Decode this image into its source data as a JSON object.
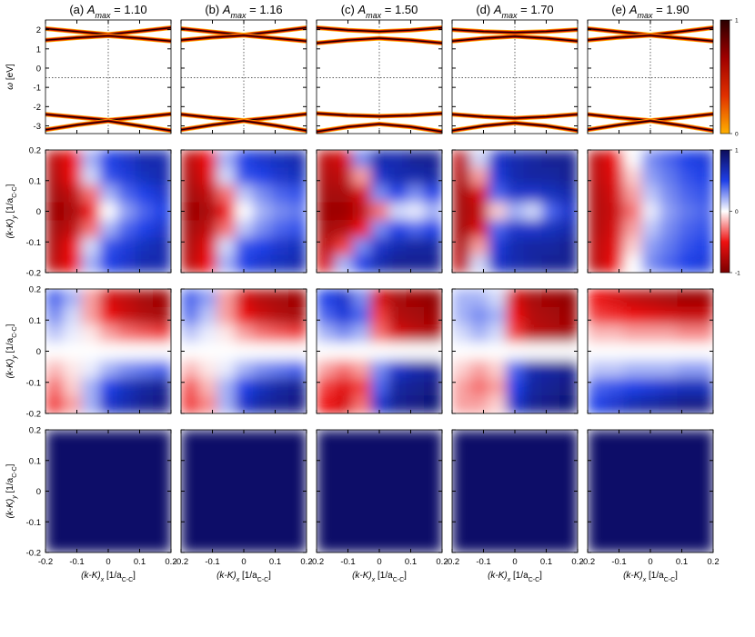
{
  "chart_data": [
    {
      "type": "line",
      "columns": [
        {
          "label": "(a)",
          "symbol": "A",
          "sub": "max",
          "eq": "= 1.10"
        },
        {
          "label": "(b)",
          "symbol": "A",
          "sub": "max",
          "eq": "= 1.16"
        },
        {
          "label": "(c)",
          "symbol": "A",
          "sub": "max",
          "eq": "= 1.50"
        },
        {
          "label": "(d)",
          "symbol": "A",
          "sub": "max",
          "eq": "= 1.70"
        },
        {
          "label": "(e)",
          "symbol": "A",
          "sub": "max",
          "eq": "= 1.90"
        }
      ],
      "ylabel": [
        "ω",
        " [eV]"
      ],
      "xlim": [
        -0.2,
        0.2
      ],
      "xticks": [
        -0.2,
        -0.1,
        0,
        0.1,
        0.2
      ],
      "ylim": [
        -3.4,
        2.5
      ],
      "yticks": [
        -3,
        -2,
        -1,
        0,
        1,
        2
      ],
      "hline": -0.5,
      "vline": 0,
      "x": [
        -0.2,
        -0.1,
        0,
        0.1,
        0.2
      ],
      "panels": [
        [
          [
            2.05,
            1.9,
            1.75,
            1.92,
            2.1
          ],
          [
            1.45,
            1.58,
            1.68,
            1.55,
            1.4
          ],
          [
            -2.4,
            -2.55,
            -2.7,
            -2.55,
            -2.38
          ],
          [
            -3.2,
            -2.95,
            -2.75,
            -3.0,
            -3.25
          ]
        ],
        [
          [
            2.05,
            1.88,
            1.72,
            1.9,
            2.1
          ],
          [
            1.45,
            1.6,
            1.7,
            1.55,
            1.4
          ],
          [
            -2.4,
            -2.58,
            -2.72,
            -2.56,
            -2.38
          ],
          [
            -3.2,
            -2.95,
            -2.74,
            -2.98,
            -3.25
          ]
        ],
        [
          [
            2.1,
            1.97,
            1.9,
            1.97,
            2.1
          ],
          [
            1.3,
            1.45,
            1.55,
            1.45,
            1.3
          ],
          [
            -2.35,
            -2.45,
            -2.5,
            -2.45,
            -2.35
          ],
          [
            -3.3,
            -3.05,
            -2.9,
            -3.05,
            -3.3
          ]
        ],
        [
          [
            2.0,
            1.9,
            1.85,
            1.9,
            2.0
          ],
          [
            1.4,
            1.55,
            1.65,
            1.55,
            1.4
          ],
          [
            -2.4,
            -2.52,
            -2.6,
            -2.52,
            -2.4
          ],
          [
            -3.25,
            -3.0,
            -2.85,
            -3.0,
            -3.25
          ]
        ],
        [
          [
            2.05,
            1.88,
            1.72,
            1.9,
            2.1
          ],
          [
            1.45,
            1.6,
            1.7,
            1.55,
            1.4
          ],
          [
            -2.4,
            -2.58,
            -2.72,
            -2.56,
            -2.38
          ],
          [
            -3.2,
            -2.95,
            -2.74,
            -2.98,
            -3.25
          ]
        ]
      ],
      "line_colors": [
        "#ffb000",
        "#d81800",
        "#1a0000"
      ],
      "colorbar": {
        "lim": [
          0,
          1
        ],
        "ticks": [
          0,
          1
        ],
        "colors": [
          "#ffb000",
          "#e03000",
          "#a00000",
          "#2a0000"
        ]
      }
    },
    {
      "type": "heatmap",
      "xlim": [
        -0.2,
        0.2
      ],
      "xticks": [
        -0.2,
        -0.1,
        0,
        0.1,
        0.2
      ],
      "ylim": [
        -0.2,
        0.2
      ],
      "yticks": [
        -0.2,
        -0.1,
        0,
        0.1,
        0.2
      ],
      "xlabel": [
        "(k-K)",
        "x",
        " [1/a",
        "C-C",
        "]"
      ],
      "ylabel": [
        "(k-K)",
        "y",
        " [1/a",
        "C-C",
        "]"
      ],
      "colorbar": {
        "lim": [
          -1,
          1
        ],
        "ticks": [
          -1,
          0,
          1
        ],
        "colors": [
          "#7a0000",
          "#ee1111",
          "#ffffff",
          "#1f3fe8",
          "#0c0c5a"
        ]
      },
      "rows": [
        [
          [
            [
              -0.7,
              -0.5,
              0.2,
              0.5,
              0.6,
              0.7,
              0.7
            ],
            [
              -0.75,
              -0.5,
              0.1,
              0.45,
              0.55,
              0.65,
              0.7
            ],
            [
              -0.8,
              -0.7,
              -0.3,
              0.2,
              0.4,
              0.5,
              0.6
            ],
            [
              -0.85,
              -0.8,
              -0.5,
              0,
              0.25,
              0.4,
              0.5
            ],
            [
              -0.8,
              -0.7,
              -0.3,
              0.2,
              0.4,
              0.5,
              0.6
            ],
            [
              -0.75,
              -0.5,
              0.1,
              0.45,
              0.55,
              0.65,
              0.7
            ],
            [
              -0.7,
              -0.5,
              0.2,
              0.5,
              0.6,
              0.7,
              0.7
            ]
          ],
          [
            [
              -0.7,
              -0.5,
              0.2,
              0.5,
              0.6,
              0.65,
              0.7
            ],
            [
              -0.75,
              -0.55,
              0.1,
              0.45,
              0.5,
              0.6,
              0.65
            ],
            [
              -0.8,
              -0.7,
              -0.3,
              0.15,
              0.3,
              0.4,
              0.45
            ],
            [
              -0.85,
              -0.8,
              -0.5,
              0,
              0.2,
              0.3,
              0.35
            ],
            [
              -0.8,
              -0.7,
              -0.3,
              0.15,
              0.3,
              0.4,
              0.45
            ],
            [
              -0.75,
              -0.55,
              0.1,
              0.45,
              0.5,
              0.6,
              0.65
            ],
            [
              -0.7,
              -0.5,
              0.2,
              0.5,
              0.6,
              0.65,
              0.7
            ]
          ],
          [
            [
              -0.7,
              -0.6,
              0.3,
              0.7,
              0.7,
              0.8,
              0.8
            ],
            [
              -0.75,
              -0.7,
              -0.2,
              0.6,
              0.7,
              0.7,
              0.75
            ],
            [
              -0.8,
              -0.8,
              -0.6,
              0.3,
              0.5,
              0.3,
              0.5
            ],
            [
              -0.85,
              -0.85,
              -0.7,
              -0.3,
              0.1,
              0.05,
              0.2
            ],
            [
              -0.8,
              -0.75,
              -0.5,
              0.3,
              0.5,
              0.4,
              0.5
            ],
            [
              -0.7,
              -0.4,
              0.3,
              0.6,
              0.7,
              0.75,
              0.75
            ],
            [
              -0.6,
              0.2,
              0.5,
              0.7,
              0.8,
              0.8,
              0.8
            ]
          ],
          [
            [
              -0.7,
              0.1,
              0.6,
              0.7,
              0.75,
              0.8,
              0.8
            ],
            [
              -0.75,
              -0.2,
              0.55,
              0.7,
              0.75,
              0.75,
              0.8
            ],
            [
              -0.8,
              -0.6,
              0.4,
              0.6,
              0.6,
              0.65,
              0.7
            ],
            [
              -0.8,
              -0.7,
              -0.1,
              0.2,
              0.1,
              0.4,
              0.6
            ],
            [
              -0.8,
              -0.6,
              0.4,
              0.6,
              0.6,
              0.65,
              0.7
            ],
            [
              -0.75,
              -0.2,
              0.55,
              0.7,
              0.75,
              0.75,
              0.8
            ],
            [
              -0.7,
              0.1,
              0.6,
              0.7,
              0.75,
              0.8,
              0.8
            ]
          ],
          [
            [
              -0.7,
              -0.5,
              0,
              0.3,
              0.4,
              0.5,
              0.55
            ],
            [
              -0.7,
              -0.55,
              -0.1,
              0.25,
              0.35,
              0.45,
              0.5
            ],
            [
              -0.75,
              -0.6,
              -0.2,
              0.15,
              0.3,
              0.4,
              0.45
            ],
            [
              -0.75,
              -0.65,
              -0.3,
              0.05,
              0.25,
              0.35,
              0.4
            ],
            [
              -0.75,
              -0.6,
              -0.2,
              0.15,
              0.3,
              0.4,
              0.45
            ],
            [
              -0.7,
              -0.55,
              -0.1,
              0.25,
              0.35,
              0.45,
              0.5
            ],
            [
              -0.7,
              -0.5,
              0,
              0.3,
              0.4,
              0.5,
              0.55
            ]
          ]
        ],
        [
          [
            [
              0.4,
              0.2,
              -0.2,
              -0.6,
              -0.7,
              -0.8,
              -0.85
            ],
            [
              0.3,
              0.1,
              -0.2,
              -0.5,
              -0.65,
              -0.75,
              -0.8
            ],
            [
              0.15,
              0.05,
              -0.05,
              -0.2,
              -0.3,
              -0.35,
              -0.4
            ],
            [
              0,
              0,
              0,
              0,
              0,
              0,
              0
            ],
            [
              -0.15,
              -0.05,
              0.05,
              0.2,
              0.3,
              0.35,
              0.4
            ],
            [
              -0.3,
              -0.1,
              0.2,
              0.5,
              0.65,
              0.75,
              0.8
            ],
            [
              -0.4,
              -0.2,
              0.2,
              0.6,
              0.7,
              0.8,
              0.85
            ]
          ],
          [
            [
              0.4,
              0.25,
              -0.2,
              -0.6,
              -0.75,
              -0.8,
              -0.85
            ],
            [
              0.35,
              0.15,
              -0.2,
              -0.5,
              -0.65,
              -0.75,
              -0.8
            ],
            [
              0.15,
              0.05,
              -0.05,
              -0.2,
              -0.3,
              -0.35,
              -0.4
            ],
            [
              0,
              0,
              0,
              0,
              0,
              0,
              0
            ],
            [
              -0.15,
              -0.05,
              0.05,
              0.2,
              0.3,
              0.35,
              0.4
            ],
            [
              -0.35,
              -0.15,
              0.2,
              0.5,
              0.65,
              0.75,
              0.8
            ],
            [
              -0.4,
              -0.25,
              0.2,
              0.6,
              0.75,
              0.8,
              0.85
            ]
          ],
          [
            [
              0.5,
              0.6,
              0.3,
              -0.6,
              -0.8,
              -0.85,
              -0.9
            ],
            [
              0.4,
              0.55,
              0.4,
              -0.4,
              -0.75,
              -0.8,
              -0.85
            ],
            [
              0.2,
              0.3,
              0.2,
              -0.3,
              -0.6,
              -0.7,
              -0.75
            ],
            [
              0,
              0,
              0,
              0,
              0,
              0,
              0
            ],
            [
              -0.2,
              -0.3,
              -0.2,
              0.3,
              0.6,
              0.7,
              0.75
            ],
            [
              -0.4,
              -0.55,
              -0.4,
              0.4,
              0.75,
              0.8,
              0.85
            ],
            [
              -0.5,
              -0.6,
              -0.3,
              0.6,
              0.8,
              0.85,
              0.9
            ]
          ],
          [
            [
              0.2,
              0.2,
              0.1,
              -0.6,
              -0.8,
              -0.85,
              -0.9
            ],
            [
              0.2,
              0.3,
              0.2,
              -0.5,
              -0.75,
              -0.8,
              -0.85
            ],
            [
              0.1,
              0.2,
              0.1,
              -0.4,
              -0.7,
              -0.75,
              -0.8
            ],
            [
              0,
              0,
              0,
              0,
              0,
              0,
              0
            ],
            [
              -0.1,
              -0.2,
              -0.1,
              0.4,
              0.7,
              0.75,
              0.8
            ],
            [
              -0.2,
              -0.3,
              -0.2,
              0.5,
              0.75,
              0.8,
              0.85
            ],
            [
              -0.2,
              -0.2,
              -0.1,
              0.6,
              0.8,
              0.85,
              0.9
            ]
          ],
          [
            [
              -0.5,
              -0.6,
              -0.7,
              -0.75,
              -0.8,
              -0.85,
              -0.85
            ],
            [
              -0.4,
              -0.45,
              -0.5,
              -0.55,
              -0.6,
              -0.65,
              -0.65
            ],
            [
              -0.15,
              -0.15,
              -0.2,
              -0.2,
              -0.2,
              -0.25,
              -0.25
            ],
            [
              0,
              0,
              0,
              0,
              0,
              0,
              0
            ],
            [
              0.15,
              0.15,
              0.2,
              0.2,
              0.2,
              0.25,
              0.25
            ],
            [
              0.4,
              0.45,
              0.5,
              0.55,
              0.6,
              0.65,
              0.65
            ],
            [
              0.5,
              0.6,
              0.7,
              0.75,
              0.8,
              0.85,
              0.85
            ]
          ]
        ],
        [
          [
            [
              0.95
            ]
          ],
          [
            [
              0.95
            ]
          ],
          [
            [
              0.95
            ]
          ],
          [
            [
              0.95
            ]
          ],
          [
            [
              0.95
            ]
          ]
        ]
      ]
    }
  ]
}
